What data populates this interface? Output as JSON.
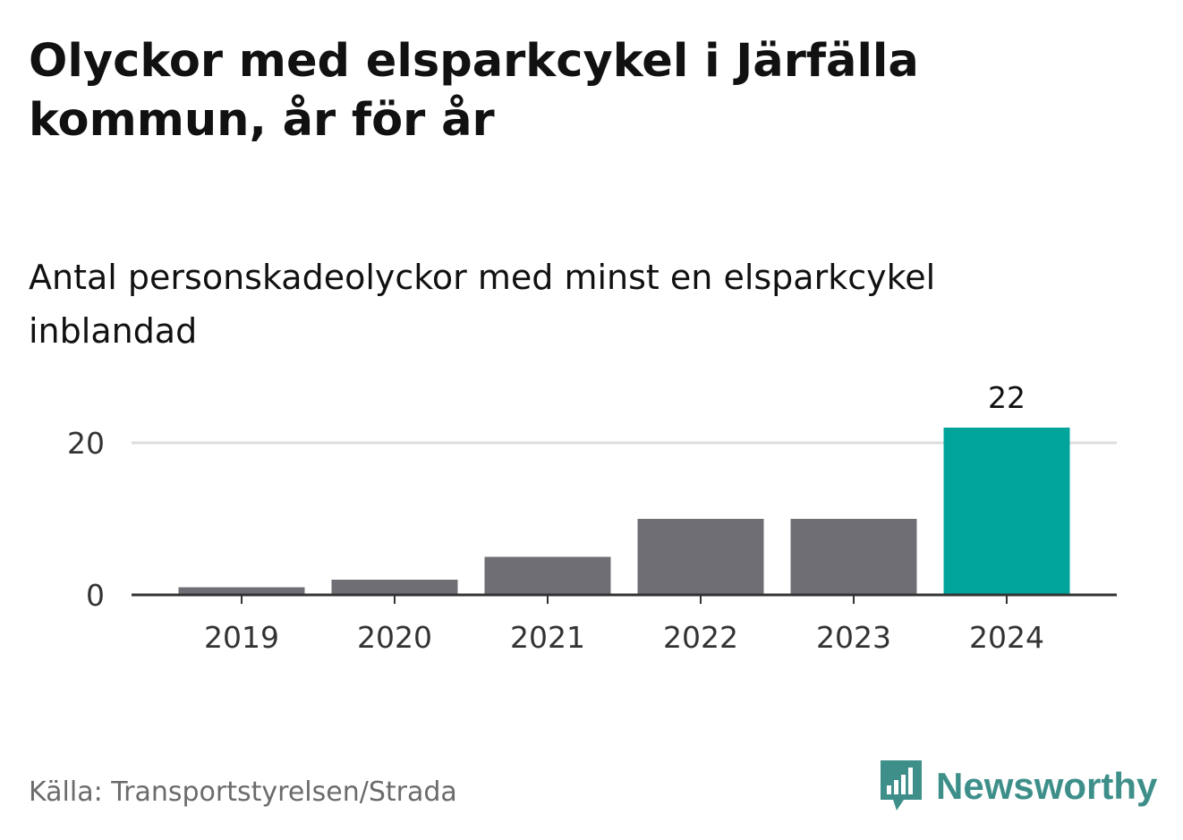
{
  "title": "Olyckor med elsparkcykel i Järfälla kommun, år för år",
  "subtitle": "Antal personskadeolyckor med minst en elsparkcykel inblandad",
  "source": "Källa: Transportstyrelsen/Strada",
  "brand": {
    "name": "Newsworthy",
    "icon": "newsworthy-logo-icon",
    "color": "#3e8f8a"
  },
  "chart_data": {
    "type": "bar",
    "categories": [
      "2019",
      "2020",
      "2021",
      "2022",
      "2023",
      "2024"
    ],
    "values": [
      1,
      2,
      5,
      10,
      10,
      22
    ],
    "ylim": [
      0,
      22
    ],
    "yticks": [
      0,
      20
    ],
    "grid": true,
    "highlight_index": 5,
    "data_labels": [
      {
        "index": 5,
        "text": "22"
      }
    ],
    "colors": {
      "bar": "#6f6e74",
      "highlight": "#00a49a",
      "grid": "#dddddd",
      "axis": "#333333"
    }
  }
}
